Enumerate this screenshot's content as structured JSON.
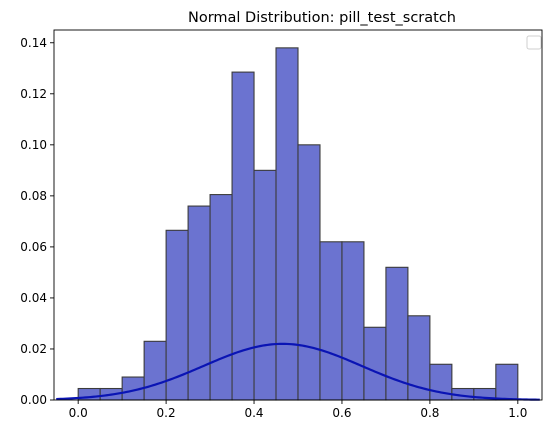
{
  "chart_data": {
    "type": "bar",
    "title": "Normal Distribution: pill_test_scratch",
    "xlabel": "",
    "ylabel": "",
    "xlim": [
      -0.055,
      1.055
    ],
    "ylim": [
      0,
      0.145
    ],
    "xticks": [
      0.0,
      0.2,
      0.4,
      0.6,
      0.8,
      1.0
    ],
    "xtick_labels": [
      "0.0",
      "0.2",
      "0.4",
      "0.6",
      "0.8",
      "1.0"
    ],
    "yticks": [
      0.0,
      0.02,
      0.04,
      0.06,
      0.08,
      0.1,
      0.12,
      0.14
    ],
    "ytick_labels": [
      "0.00",
      "0.02",
      "0.04",
      "0.06",
      "0.08",
      "0.10",
      "0.12",
      "0.14"
    ],
    "grid": false,
    "legend": "top-right",
    "histogram": {
      "bin_edges": [
        0.0,
        0.05,
        0.1,
        0.15,
        0.2,
        0.25,
        0.3,
        0.35,
        0.4,
        0.45,
        0.5,
        0.55,
        0.6,
        0.65,
        0.7,
        0.75,
        0.8,
        0.85,
        0.9,
        0.95,
        1.0
      ],
      "values": [
        0.0045,
        0.0045,
        0.009,
        0.023,
        0.0665,
        0.076,
        0.0805,
        0.1285,
        0.09,
        0.138,
        0.1,
        0.062,
        0.062,
        0.0285,
        0.052,
        0.033,
        0.014,
        0.0045,
        0.0045,
        0.014
      ],
      "color": "#6b73d0"
    },
    "curve": {
      "type": "line",
      "distribution": "normal",
      "mean": 0.465,
      "std": 0.18,
      "scale": 0.022,
      "x_range": [
        -0.05,
        1.05
      ],
      "color": "#0a14b4"
    }
  }
}
